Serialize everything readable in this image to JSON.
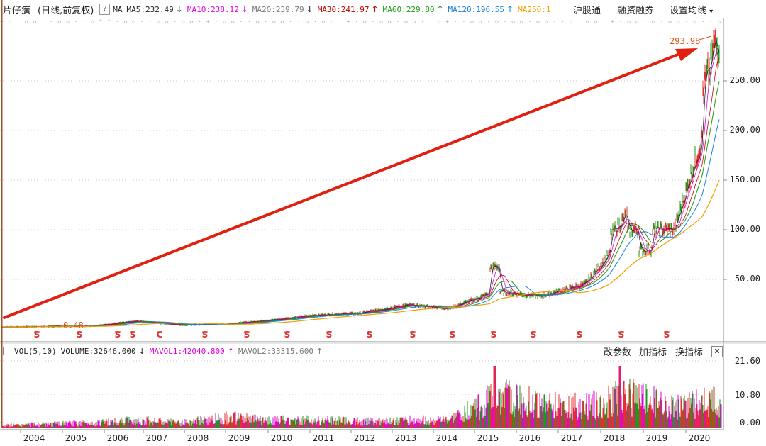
{
  "header": {
    "stock_name": "片仔癀",
    "period_label": "(日线,前复权)",
    "help_icon": "?",
    "ma_label": "MA",
    "mas": [
      {
        "label": "MA5:232.49",
        "arrow": "↓",
        "color": "#222222",
        "arrow_color": "#222222"
      },
      {
        "label": "MA10:238.12",
        "arrow": "↓",
        "color": "#e000e0",
        "arrow_color": "#e000e0"
      },
      {
        "label": "MA20:239.79",
        "arrow": "↓",
        "color": "#777777",
        "arrow_color": "#222222"
      },
      {
        "label": "MA30:241.97",
        "arrow": "↑",
        "color": "#c00000",
        "arrow_color": "#c00000"
      },
      {
        "label": "MA60:229.80",
        "arrow": "↑",
        "color": "#1a9a1a",
        "arrow_color": "#1a9a1a"
      },
      {
        "label": "MA120:196.55",
        "arrow": "↑",
        "color": "#1a80e0",
        "arrow_color": "#1a80e0"
      },
      {
        "label": "MA250:1",
        "arrow": "",
        "color": "#f0a000",
        "arrow_color": "#f0a000"
      }
    ],
    "hugutong": "沪股通",
    "margin": "融资融券",
    "settings": "设置均线",
    "settings_arrow": "▾"
  },
  "price_axis": {
    "labels": [
      "250.00",
      "200.00",
      "150.00",
      "100.00",
      "50.00"
    ]
  },
  "annotations": {
    "high": "293.98",
    "low": "0.48"
  },
  "signal_marks": [
    "S",
    "S",
    "S",
    "S",
    "C",
    "S",
    "S",
    "S",
    "S",
    "S",
    "S",
    "S",
    "S",
    "S",
    "S",
    "S",
    "S"
  ],
  "volume_header": {
    "vol_label": "VOL(5,10)",
    "volume": "VOLUME:32646.000",
    "volume_arrow": "↓",
    "mavol1": "MAVOL1:42040.800",
    "mavol1_arrow": "↑",
    "mavol2": "MAVOL2:33315.600",
    "mavol2_arrow": "↑",
    "btn_params": "改参数",
    "btn_add": "加指标",
    "btn_switch": "换指标",
    "close": "✕"
  },
  "volume_axis": {
    "labels": [
      "21.60",
      "10.80",
      "0.00"
    ]
  },
  "x_axis": {
    "labels": [
      "2004",
      "2005",
      "2006",
      "2007",
      "2008",
      "2009",
      "2010",
      "2011",
      "2012",
      "2013",
      "2014",
      "2015",
      "2016",
      "2017",
      "2018",
      "2019",
      "2020"
    ]
  },
  "colors": {
    "up": "#e03030",
    "down": "#1a9a1a",
    "arrow": "#e02010",
    "ma5": "#222222",
    "ma10": "#e000e0",
    "ma30": "#c00000",
    "ma60": "#1a9a1a",
    "ma120": "#1a80e0",
    "ma250": "#f0a000"
  },
  "chart_data": {
    "type": "line",
    "x": [
      "2004",
      "2005",
      "2006",
      "2007",
      "2008",
      "2009",
      "2010",
      "2011",
      "2012",
      "2013",
      "2014",
      "2015",
      "2016",
      "2017",
      "2018",
      "2019",
      "2020"
    ],
    "series": [
      {
        "name": "",
        "values": [
          2,
          2.5,
          3,
          8,
          4,
          5,
          9,
          14,
          16,
          24,
          21,
          38,
          33,
          45,
          100,
          100,
          250
        ]
      }
    ],
    "ylim": [
      0,
      300
    ],
    "volume": [
      1,
      1.5,
      2,
      3,
      2,
      4,
      3,
      3,
      2.5,
      3,
      3,
      12,
      9,
      8,
      12,
      8,
      10
    ],
    "volume_ylim": [
      0,
      21.6
    ]
  }
}
